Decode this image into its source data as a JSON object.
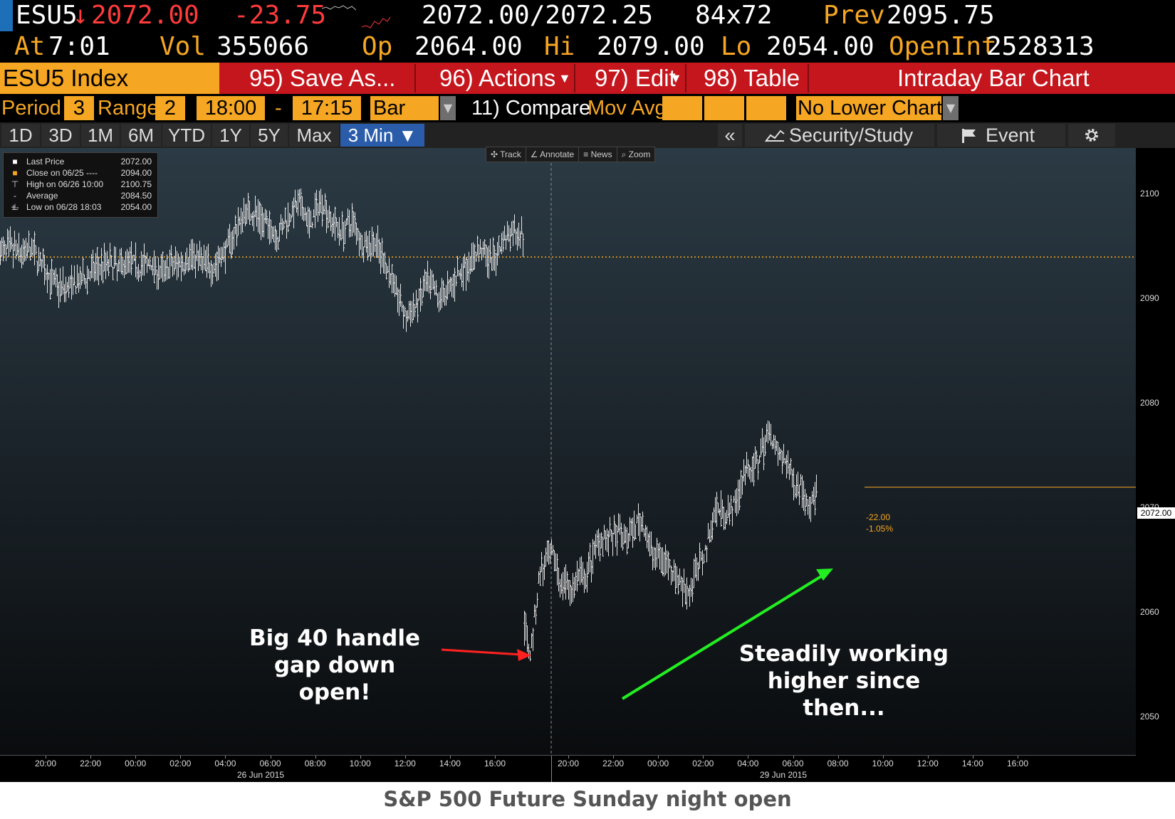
{
  "quote": {
    "ticker": "ESU5",
    "last": "2072.00",
    "change": "-23.75",
    "bid_ask": "2072.00/2072.25",
    "size": "84x72",
    "prev_label": "Prev",
    "prev": "2095.75",
    "at_label": "At",
    "time": "7:01",
    "vol_label": "Vol",
    "vol": "355066",
    "op_label": "Op",
    "op": "2064.00",
    "hi_label": "Hi",
    "hi": "2079.00",
    "lo_label": "Lo",
    "lo": "2054.00",
    "oi_label": "OpenInt",
    "oi": "2528313"
  },
  "funcbar": {
    "security": "ESU5 Index",
    "save": "95) Save As...",
    "actions": "96) Actions",
    "edit": "97) Edit",
    "table": "98) Table",
    "view_title": "Intraday Bar Chart"
  },
  "settings": {
    "period_label": "Period",
    "period": "3",
    "range_label": "Range",
    "range": "2",
    "start": "18:00",
    "dash": "-",
    "end": "17:15",
    "type": "Bar",
    "compare": "11) Compare",
    "movavg": "Mov Avg",
    "lower": "No Lower Chart"
  },
  "tabs": [
    "1D",
    "3D",
    "1M",
    "6M",
    "YTD",
    "1Y",
    "5Y",
    "Max",
    "3 Min ▼"
  ],
  "toolbar": {
    "collapse": "«",
    "security_study": "Security/Study",
    "event": "Event",
    "settings_icon": "gear-icon"
  },
  "toolstrip": [
    "Track",
    "Annotate",
    "News",
    "Zoom"
  ],
  "legend": [
    {
      "label": "Last Price",
      "value": "2072.00"
    },
    {
      "label": "Close on 06/25 ----",
      "value": "2094.00"
    },
    {
      "label": "High on 06/26 10:00",
      "value": "2100.75"
    },
    {
      "label": "Average",
      "value": "2084.50"
    },
    {
      "label": "Low on 06/28 18:03",
      "value": "2054.00"
    }
  ],
  "annotations": {
    "gap": "Big 40 handle\ngap down open!",
    "higher": "Steadily working\nhigher since then..."
  },
  "change_labels": {
    "points": "-22.00",
    "percent": "-1.05%"
  },
  "last_tag": "2072.00",
  "caption": "S&P 500 Future Sunday night open",
  "colors": {
    "accent": "#f5a623",
    "funcbar": "#c5161d",
    "down": "#ff3b3b",
    "gap_arrow": "#ff2020",
    "trend_arrow": "#22ee22"
  },
  "chart_data": {
    "type": "bar",
    "series_name": "ESU5 Index 3 Min bars",
    "ylim": [
      2049,
      2106
    ],
    "yticks": [
      2050,
      2060,
      2070,
      2080,
      2090,
      2100
    ],
    "x_ticks": [
      "20:00",
      "22:00",
      "00:00",
      "02:00",
      "04:00",
      "06:00",
      "08:00",
      "10:00",
      "12:00",
      "14:00",
      "16:00",
      "20:00",
      "22:00",
      "00:00",
      "02:00",
      "04:00",
      "06:00",
      "08:00",
      "10:00",
      "12:00",
      "14:00",
      "16:00"
    ],
    "x_dates": [
      "26 Jun 2015",
      "29 Jun 2015"
    ],
    "prev_close": 2094.0,
    "last": 2072.0,
    "session1_path": [
      [
        0,
        2094.5
      ],
      [
        6,
        2094.8
      ],
      [
        12,
        2094.3
      ],
      [
        18,
        2094.7
      ],
      [
        24,
        2093.0
      ],
      [
        30,
        2091.5
      ],
      [
        36,
        2091.0
      ],
      [
        42,
        2091.3
      ],
      [
        48,
        2092.0
      ],
      [
        54,
        2093.0
      ],
      [
        60,
        2093.5
      ],
      [
        66,
        2093.0
      ],
      [
        72,
        2093.8
      ],
      [
        78,
        2093.0
      ],
      [
        84,
        2093.5
      ],
      [
        90,
        2092.5
      ],
      [
        96,
        2093.2
      ],
      [
        102,
        2093.5
      ],
      [
        108,
        2094.2
      ],
      [
        114,
        2093.5
      ],
      [
        120,
        2093.0
      ],
      [
        126,
        2094.5
      ],
      [
        132,
        2096.5
      ],
      [
        138,
        2098.5
      ],
      [
        144,
        2098.0
      ],
      [
        150,
        2097.0
      ],
      [
        156,
        2096.0
      ],
      [
        162,
        2098.0
      ],
      [
        168,
        2099.0
      ],
      [
        174,
        2097.0
      ],
      [
        180,
        2099.5
      ],
      [
        186,
        2097.5
      ],
      [
        192,
        2096.5
      ],
      [
        198,
        2097.5
      ],
      [
        204,
        2095.0
      ],
      [
        210,
        2095.5
      ],
      [
        216,
        2093.5
      ],
      [
        222,
        2091.0
      ],
      [
        228,
        2088.0
      ],
      [
        234,
        2089.5
      ],
      [
        240,
        2091.5
      ],
      [
        246,
        2090.0
      ],
      [
        252,
        2091.0
      ],
      [
        258,
        2092.5
      ],
      [
        264,
        2093.5
      ],
      [
        270,
        2094.8
      ],
      [
        276,
        2093.5
      ],
      [
        282,
        2095.5
      ],
      [
        288,
        2096.5
      ],
      [
        294,
        2096.0
      ]
    ],
    "session2_path": [
      [
        0,
        2059.0
      ],
      [
        4,
        2056.0
      ],
      [
        8,
        2060.0
      ],
      [
        12,
        2064.0
      ],
      [
        16,
        2064.5
      ],
      [
        20,
        2065.5
      ],
      [
        24,
        2064.5
      ],
      [
        28,
        2062.5
      ],
      [
        32,
        2063.0
      ],
      [
        36,
        2062.0
      ],
      [
        40,
        2063.5
      ],
      [
        46,
        2063.0
      ],
      [
        52,
        2066.0
      ],
      [
        58,
        2067.5
      ],
      [
        64,
        2067.0
      ],
      [
        70,
        2067.5
      ],
      [
        76,
        2067.0
      ],
      [
        82,
        2068.0
      ],
      [
        88,
        2069.0
      ],
      [
        94,
        2066.0
      ],
      [
        100,
        2065.5
      ],
      [
        106,
        2065.0
      ],
      [
        112,
        2064.0
      ],
      [
        118,
        2062.5
      ],
      [
        124,
        2062.0
      ],
      [
        130,
        2064.5
      ],
      [
        136,
        2066.0
      ],
      [
        142,
        2069.5
      ],
      [
        148,
        2070.0
      ],
      [
        154,
        2069.5
      ],
      [
        160,
        2071.0
      ],
      [
        166,
        2074.0
      ],
      [
        172,
        2073.5
      ],
      [
        178,
        2075.5
      ],
      [
        184,
        2077.5
      ],
      [
        190,
        2075.0
      ],
      [
        196,
        2074.5
      ],
      [
        202,
        2072.5
      ],
      [
        208,
        2072.0
      ],
      [
        214,
        2070.0
      ],
      [
        220,
        2072.0
      ]
    ]
  }
}
